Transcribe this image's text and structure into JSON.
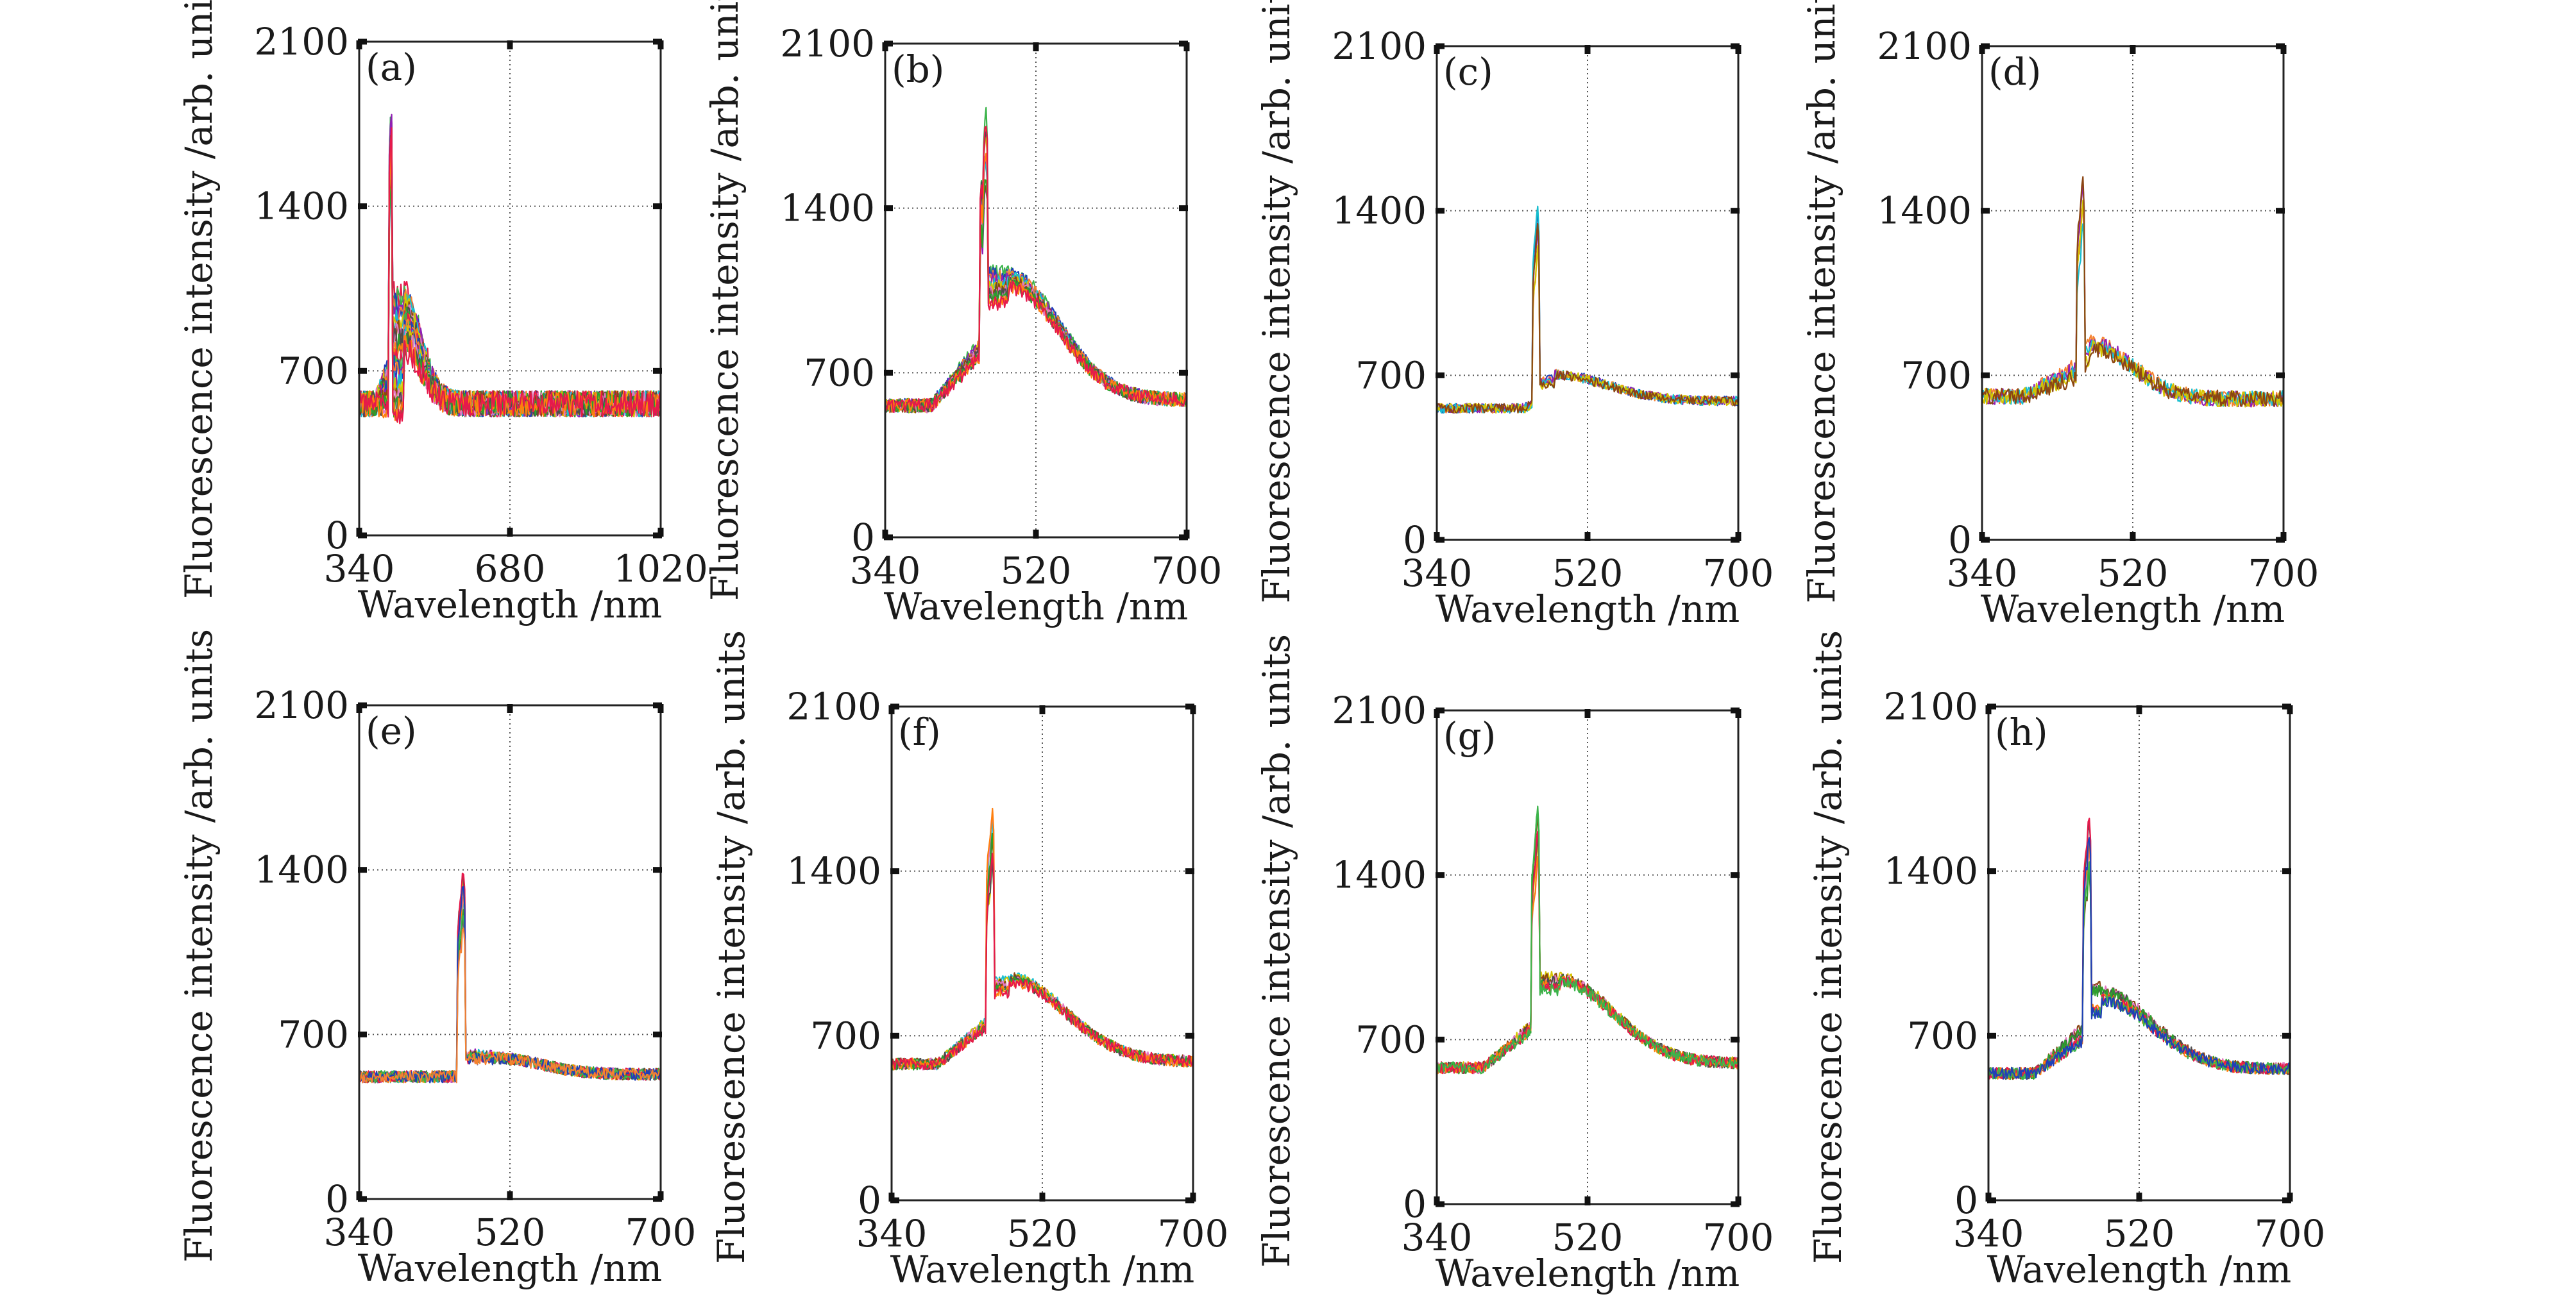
{
  "chart_data": [
    {
      "type": "line",
      "panel_label": "(a)",
      "xlabel": "Wavelength /nm",
      "ylabel": "Fluorescence intensity /arb. units",
      "xlim": [
        340,
        1020
      ],
      "ylim": [
        0,
        2100
      ],
      "xticks": [
        "340",
        "680",
        "1020"
      ],
      "yticks": [
        "0",
        "700",
        "1400",
        "2100"
      ],
      "grid": true,
      "series_profile": {
        "curve_count": 25,
        "baseline": 560,
        "step_at": 375,
        "peak_x": 412,
        "peak_y": 1800,
        "peak2_x": 408,
        "peak2_y": 1550,
        "hump_center": 440,
        "hump_y": 1050,
        "hump_width": 55,
        "hump_spread": 0.6,
        "tail_level": 560,
        "noise": 55
      }
    },
    {
      "type": "line",
      "panel_label": "(b)",
      "xlabel": "Wavelength /nm",
      "ylabel": "Fluorescence intensity /arb. units",
      "xlim": [
        340,
        700
      ],
      "ylim": [
        0,
        2100
      ],
      "xticks": [
        "340",
        "520",
        "700"
      ],
      "yticks": [
        "0",
        "700",
        "1400",
        "2100"
      ],
      "grid": true,
      "series_profile": {
        "curve_count": 12,
        "baseline": 560,
        "step_at": 395,
        "peak_x": 460,
        "peak_y": 1780,
        "peak2_x": 455,
        "peak2_y": 1500,
        "hump_center": 487,
        "hump_y": 1120,
        "hump_width": 85,
        "hump_spread": 0.15,
        "tail_level": 585,
        "noise": 30
      }
    },
    {
      "type": "line",
      "panel_label": "(c)",
      "xlabel": "Wavelength /nm",
      "ylabel": "Fluorescence intensity /arb. units",
      "xlim": [
        340,
        700
      ],
      "ylim": [
        0,
        2100
      ],
      "xticks": [
        "340",
        "520",
        "700"
      ],
      "yticks": [
        "0",
        "700",
        "1400",
        "2100"
      ],
      "grid": true,
      "series_profile": {
        "curve_count": 6,
        "baseline": 560,
        "step_at": 445,
        "peak_x": 460,
        "peak_y": 1450,
        "peak2_x": 457,
        "peak2_y": 1300,
        "hump_center": 480,
        "hump_y": 710,
        "hump_width": 90,
        "hump_spread": 0.05,
        "tail_level": 590,
        "noise": 20
      }
    },
    {
      "type": "line",
      "panel_label": "(d)",
      "xlabel": "Wavelength /nm",
      "ylabel": "Fluorescence intensity /arb. units",
      "xlim": [
        340,
        700
      ],
      "ylim": [
        0,
        2100
      ],
      "xticks": [
        "340",
        "520",
        "700"
      ],
      "yticks": [
        "0",
        "700",
        "1400",
        "2100"
      ],
      "grid": true,
      "series_profile": {
        "curve_count": 5,
        "baseline": 610,
        "step_at": 390,
        "peak_x": 460,
        "peak_y": 1550,
        "peak2_x": 456,
        "peak2_y": 1380,
        "hump_center": 470,
        "hump_y": 840,
        "hump_width": 70,
        "hump_spread": 0.12,
        "tail_level": 600,
        "noise": 35
      }
    },
    {
      "type": "line",
      "panel_label": "(e)",
      "xlabel": "Wavelength /nm",
      "ylabel": "Fluorescence intensity /arb. units",
      "xlim": [
        340,
        700
      ],
      "ylim": [
        0,
        2100
      ],
      "xticks": [
        "340",
        "520",
        "700"
      ],
      "yticks": [
        "0",
        "700",
        "1400",
        "2100"
      ],
      "grid": true,
      "series_profile": {
        "curve_count": 12,
        "baseline": 520,
        "step_at": 462,
        "peak_x": 464,
        "peak_y": 1400,
        "peak2_x": 460,
        "peak2_y": 1250,
        "hump_center": 500,
        "hump_y": 600,
        "hump_width": 80,
        "hump_spread": 0.05,
        "tail_level": 530,
        "noise": 25
      }
    },
    {
      "type": "line",
      "panel_label": "(f)",
      "xlabel": "Wavelength /nm",
      "ylabel": "Fluorescence intensity /arb. units",
      "xlim": [
        340,
        700
      ],
      "ylim": [
        0,
        2100
      ],
      "xticks": [
        "340",
        "520",
        "700"
      ],
      "yticks": [
        "0",
        "700",
        "1400",
        "2100"
      ],
      "grid": true,
      "series_profile": {
        "curve_count": 8,
        "baseline": 580,
        "step_at": 395,
        "peak_x": 460,
        "peak_y": 1650,
        "peak2_x": 456,
        "peak2_y": 1480,
        "hump_center": 480,
        "hump_y": 960,
        "hump_width": 95,
        "hump_spread": 0.07,
        "tail_level": 590,
        "noise": 25
      }
    },
    {
      "type": "line",
      "panel_label": "(g)",
      "xlabel": "Wavelength /nm",
      "ylabel": "Fluorescence intensity /arb. units",
      "xlim": [
        340,
        700
      ],
      "ylim": [
        0,
        2100
      ],
      "xticks": [
        "340",
        "520",
        "700"
      ],
      "yticks": [
        "0",
        "700",
        "1400",
        "2100"
      ],
      "grid": true,
      "series_profile": {
        "curve_count": 8,
        "baseline": 580,
        "step_at": 395,
        "peak_x": 460,
        "peak_y": 1660,
        "peak2_x": 456,
        "peak2_y": 1480,
        "hump_center": 487,
        "hump_y": 960,
        "hump_width": 90,
        "hump_spread": 0.07,
        "tail_level": 600,
        "noise": 25
      }
    },
    {
      "type": "line",
      "panel_label": "(h)",
      "xlabel": "Wavelength /nm",
      "ylabel": "Fluorescence intensity /arb. units",
      "xlim": [
        340,
        700
      ],
      "ylim": [
        0,
        2100
      ],
      "xticks": [
        "340",
        "520",
        "700"
      ],
      "yticks": [
        "0",
        "700",
        "1400",
        "2100"
      ],
      "grid": true,
      "series_profile": {
        "curve_count": 8,
        "baseline": 540,
        "step_at": 395,
        "peak_x": 460,
        "peak_y": 1600,
        "peak2_x": 456,
        "peak2_y": 1450,
        "hump_center": 475,
        "hump_y": 880,
        "hump_width": 85,
        "hump_spread": 0.07,
        "tail_level": 560,
        "noise": 25
      }
    }
  ],
  "style": {
    "series_colors": [
      "#e6194b",
      "#3cb44b",
      "#1f3fb8",
      "#f58231",
      "#911eb4",
      "#17becf",
      "#d4c400",
      "#8b4513",
      "#e377c2",
      "#4d4d4d",
      "#2ca02c",
      "#ff7f0e"
    ]
  }
}
